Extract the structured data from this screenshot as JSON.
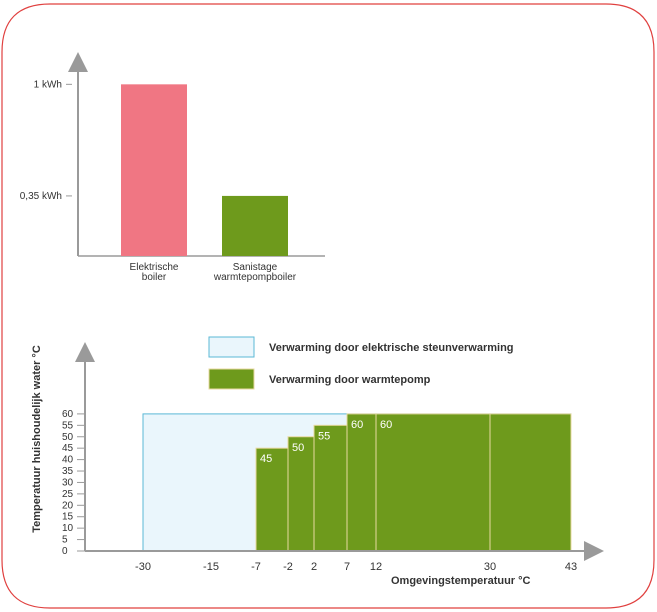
{
  "colors": {
    "frame": "#e0403f",
    "axis": "#9a9a9a",
    "electric": "#f07683",
    "heatpump": "#6e9a1c",
    "heatpump_border": "#e8d9a0",
    "support_fill": "#eaf6fc",
    "support_border": "#5bb8d6",
    "text": "#333333",
    "value_text": "#ffffff"
  },
  "chart_data": [
    {
      "type": "bar",
      "title": "",
      "xlabel": "",
      "ylabel": "",
      "categories": [
        [
          "Elektrische",
          "boiler"
        ],
        [
          "Sanistage",
          "warmtepompboiler"
        ]
      ],
      "values": [
        1,
        0.35
      ],
      "tick_values": [
        1,
        0.35
      ],
      "tick_labels": [
        "1 kWh",
        "0,35 kWh"
      ],
      "ylim": [
        0,
        1.2
      ],
      "grid": false,
      "legend": "none"
    },
    {
      "type": "area",
      "xlabel": "Omgevingstemperatuur °C",
      "ylabel": "Temperatuur huishoudelijk water °C",
      "x_ticks": [
        "-30",
        "-15",
        "-7",
        "-2",
        "2",
        "7",
        "12",
        "30",
        "43"
      ],
      "y_ticks": [
        "0",
        "5",
        "10",
        "15",
        "20",
        "25",
        "30",
        "35",
        "40",
        "45",
        "50",
        "55",
        "60"
      ],
      "ylim": [
        0,
        60
      ],
      "grid": false,
      "legend": "top",
      "support_region": {
        "x": [
          "-30",
          "43"
        ],
        "y": 60
      },
      "heatpump_steps": [
        {
          "from": "-7",
          "to": "-2",
          "value": 45,
          "label": "45"
        },
        {
          "from": "-2",
          "to": "2",
          "value": 50,
          "label": "50"
        },
        {
          "from": "2",
          "to": "7",
          "value": 55,
          "label": "55"
        },
        {
          "from": "7",
          "to": "12",
          "value": 60,
          "label": "60"
        },
        {
          "from": "12",
          "to": "30",
          "value": 60,
          "label": "60"
        },
        {
          "from": "30",
          "to": "43",
          "value": 60,
          "label": ""
        }
      ],
      "series": [
        {
          "name": "Verwarming door elektrische steunverwarming",
          "color": "support"
        },
        {
          "name": "Verwarming door warmtepomp",
          "color": "heatpump"
        }
      ]
    }
  ]
}
